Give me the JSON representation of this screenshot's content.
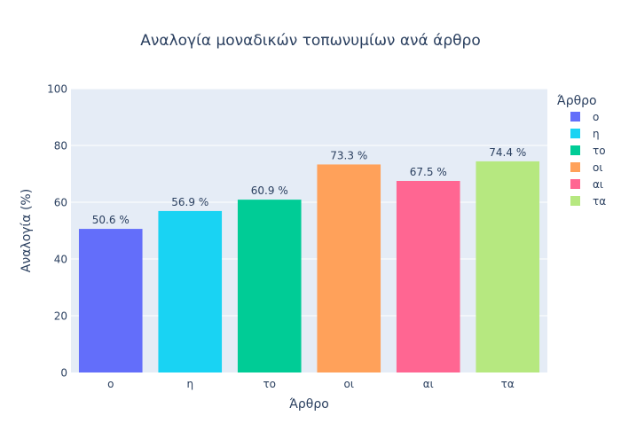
{
  "chart_data": {
    "type": "bar",
    "title": "Αναλογία μοναδικών τοπωνυμίων ανά άρθρο",
    "xlabel": "Άρθρο",
    "ylabel": "Αναλογία (%)",
    "ylim": [
      0,
      100
    ],
    "yticks": [
      0,
      20,
      40,
      60,
      80,
      100
    ],
    "categories": [
      "ο",
      "η",
      "το",
      "οι",
      "αι",
      "τα"
    ],
    "values": [
      50.6,
      56.9,
      60.9,
      73.3,
      67.5,
      74.4
    ],
    "value_labels": [
      "50.6 %",
      "56.9 %",
      "60.9 %",
      "73.3 %",
      "67.5 %",
      "74.4 %"
    ],
    "colors": [
      "#636efa",
      "#19d3f3",
      "#00cc96",
      "#ffa15a",
      "#ff6692",
      "#b6e880"
    ],
    "grid": true,
    "legend": {
      "title": "Άρθρο",
      "position": "right",
      "entries": [
        "ο",
        "η",
        "το",
        "οι",
        "αι",
        "τα"
      ]
    },
    "plot_background": "#e5ecf6",
    "text_color": "#2a3f5f"
  }
}
